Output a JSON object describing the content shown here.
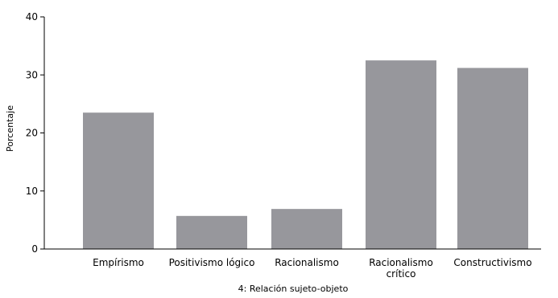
{
  "chart_data": {
    "type": "bar",
    "xlabel": "4: Relación sujeto-objeto",
    "ylabel": "Porcentaje",
    "ylim": [
      0,
      40
    ],
    "yticks": [
      0,
      10,
      20,
      30,
      40
    ],
    "grid": false,
    "categories": [
      [
        "Empírismo"
      ],
      [
        "Positivismo lógico"
      ],
      [
        "Racionalismo"
      ],
      [
        "Racionalismo",
        "crítico"
      ],
      [
        "Constructivismo"
      ]
    ],
    "values": [
      23.5,
      5.7,
      6.9,
      32.5,
      31.2
    ],
    "colors": {
      "bar": "#97979c",
      "axis": "#000000"
    }
  }
}
